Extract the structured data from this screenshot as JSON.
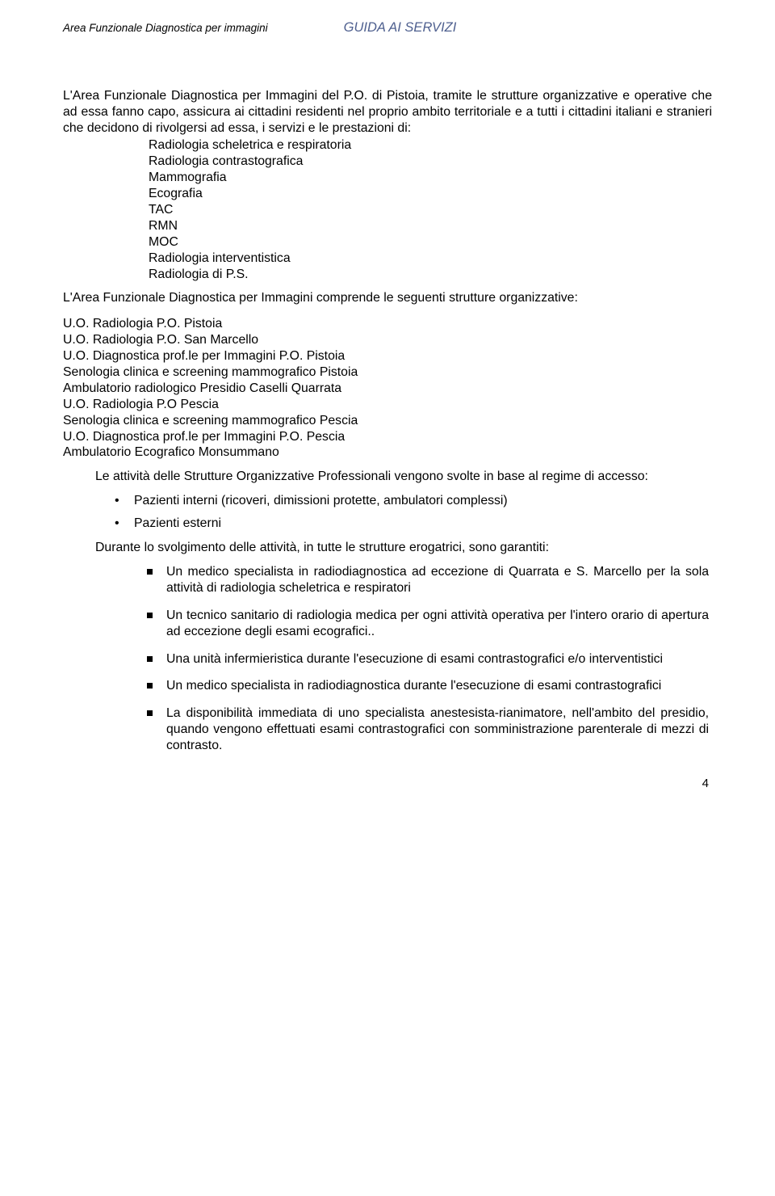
{
  "header": {
    "left": "Area Funzionale Diagnostica per immagini",
    "right": "GUIDA AI SERVIZI",
    "right_color": "#4f608f"
  },
  "intro": "L'Area Funzionale Diagnostica per Immagini del P.O. di Pistoia, tramite le strutture organizzative e operative che ad essa fanno capo, assicura ai cittadini residenti nel proprio ambito territoriale e a tutti i cittadini italiani e stranieri che decidono di rivolgersi ad essa, i servizi e le prestazioni di:",
  "services": [
    "Radiologia scheletrica e respiratoria",
    "Radiologia contrastografica",
    "Mammografia",
    "Ecografia",
    "TAC",
    "RMN",
    "MOC",
    "Radiologia interventistica",
    "Radiologia di P.S."
  ],
  "org_intro": "L'Area Funzionale Diagnostica per Immagini comprende le seguenti strutture organizzative:",
  "org_units": [
    "U.O. Radiologia P.O. Pistoia",
    "U.O. Radiologia P.O. San Marcello",
    "U.O. Diagnostica prof.le per Immagini P.O. Pistoia",
    "Senologia clinica e screening mammografico Pistoia",
    "Ambulatorio radiologico Presidio Caselli Quarrata",
    "U.O. Radiologia P.O Pescia",
    "Senologia clinica e screening mammografico Pescia",
    "U.O. Diagnostica prof.le per Immagini P.O. Pescia",
    "Ambulatorio Ecografico Monsummano"
  ],
  "regime_intro": "Le attività delle Strutture Organizzative Professionali vengono svolte in base al regime di accesso:",
  "regimes": [
    "Pazienti interni (ricoveri, dimissioni protette, ambulatori complessi)",
    "Pazienti esterni"
  ],
  "guarantee_intro": "Durante lo svolgimento delle attività, in tutte le strutture erogatrici, sono garantiti:",
  "guarantees": [
    "Un medico specialista in radiodiagnostica ad eccezione di Quarrata e S. Marcello per la sola attività di radiologia scheletrica e respiratori",
    "Un tecnico sanitario di radiologia medica per ogni attività operativa per l'intero orario di apertura ad eccezione degli esami ecografici..",
    "Una unità infermieristica durante l'esecuzione di esami contrastografici e/o interventistici",
    "Un medico specialista in radiodiagnostica durante l'esecuzione di esami contrastografici",
    "La disponibilità immediata di uno specialista anestesista-rianimatore, nell'ambito del presidio, quando vengono effettuati esami contrastografici con somministrazione parenterale di mezzi di contrasto."
  ],
  "page_number": "4"
}
